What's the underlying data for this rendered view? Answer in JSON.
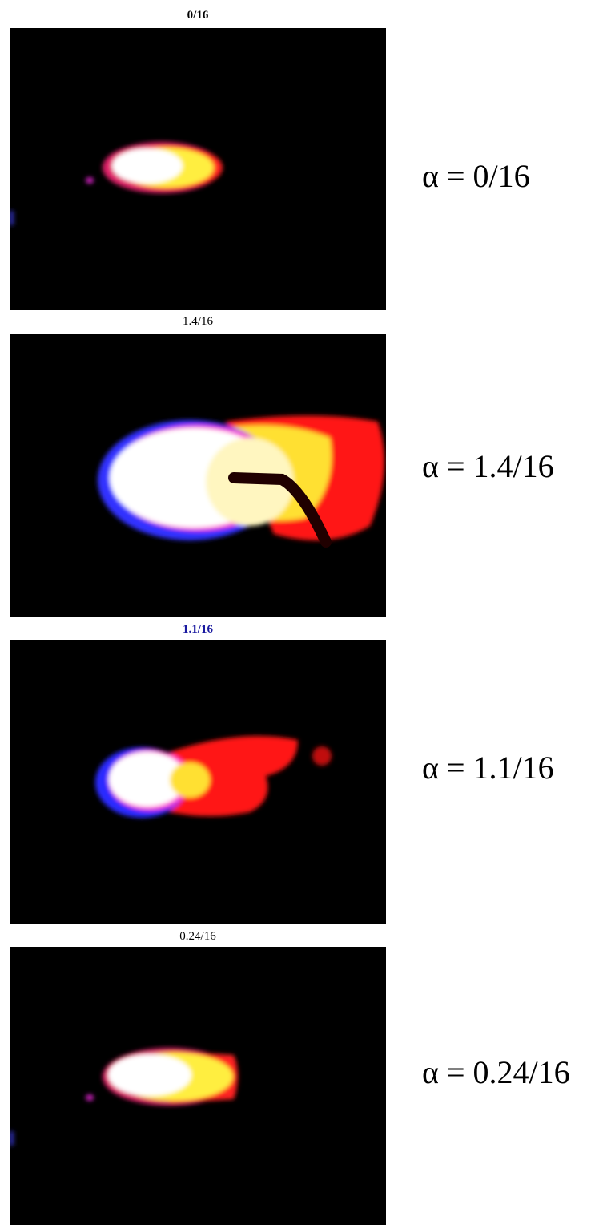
{
  "panels": [
    {
      "caption": "0/16",
      "label": "α = 0/16"
    },
    {
      "caption": "1.4/16",
      "label": "α = 1.4/16"
    },
    {
      "caption": "1.1/16",
      "label": "α = 1.1/16"
    },
    {
      "caption": "0.24/16",
      "label": "α = 0.24/16"
    }
  ]
}
